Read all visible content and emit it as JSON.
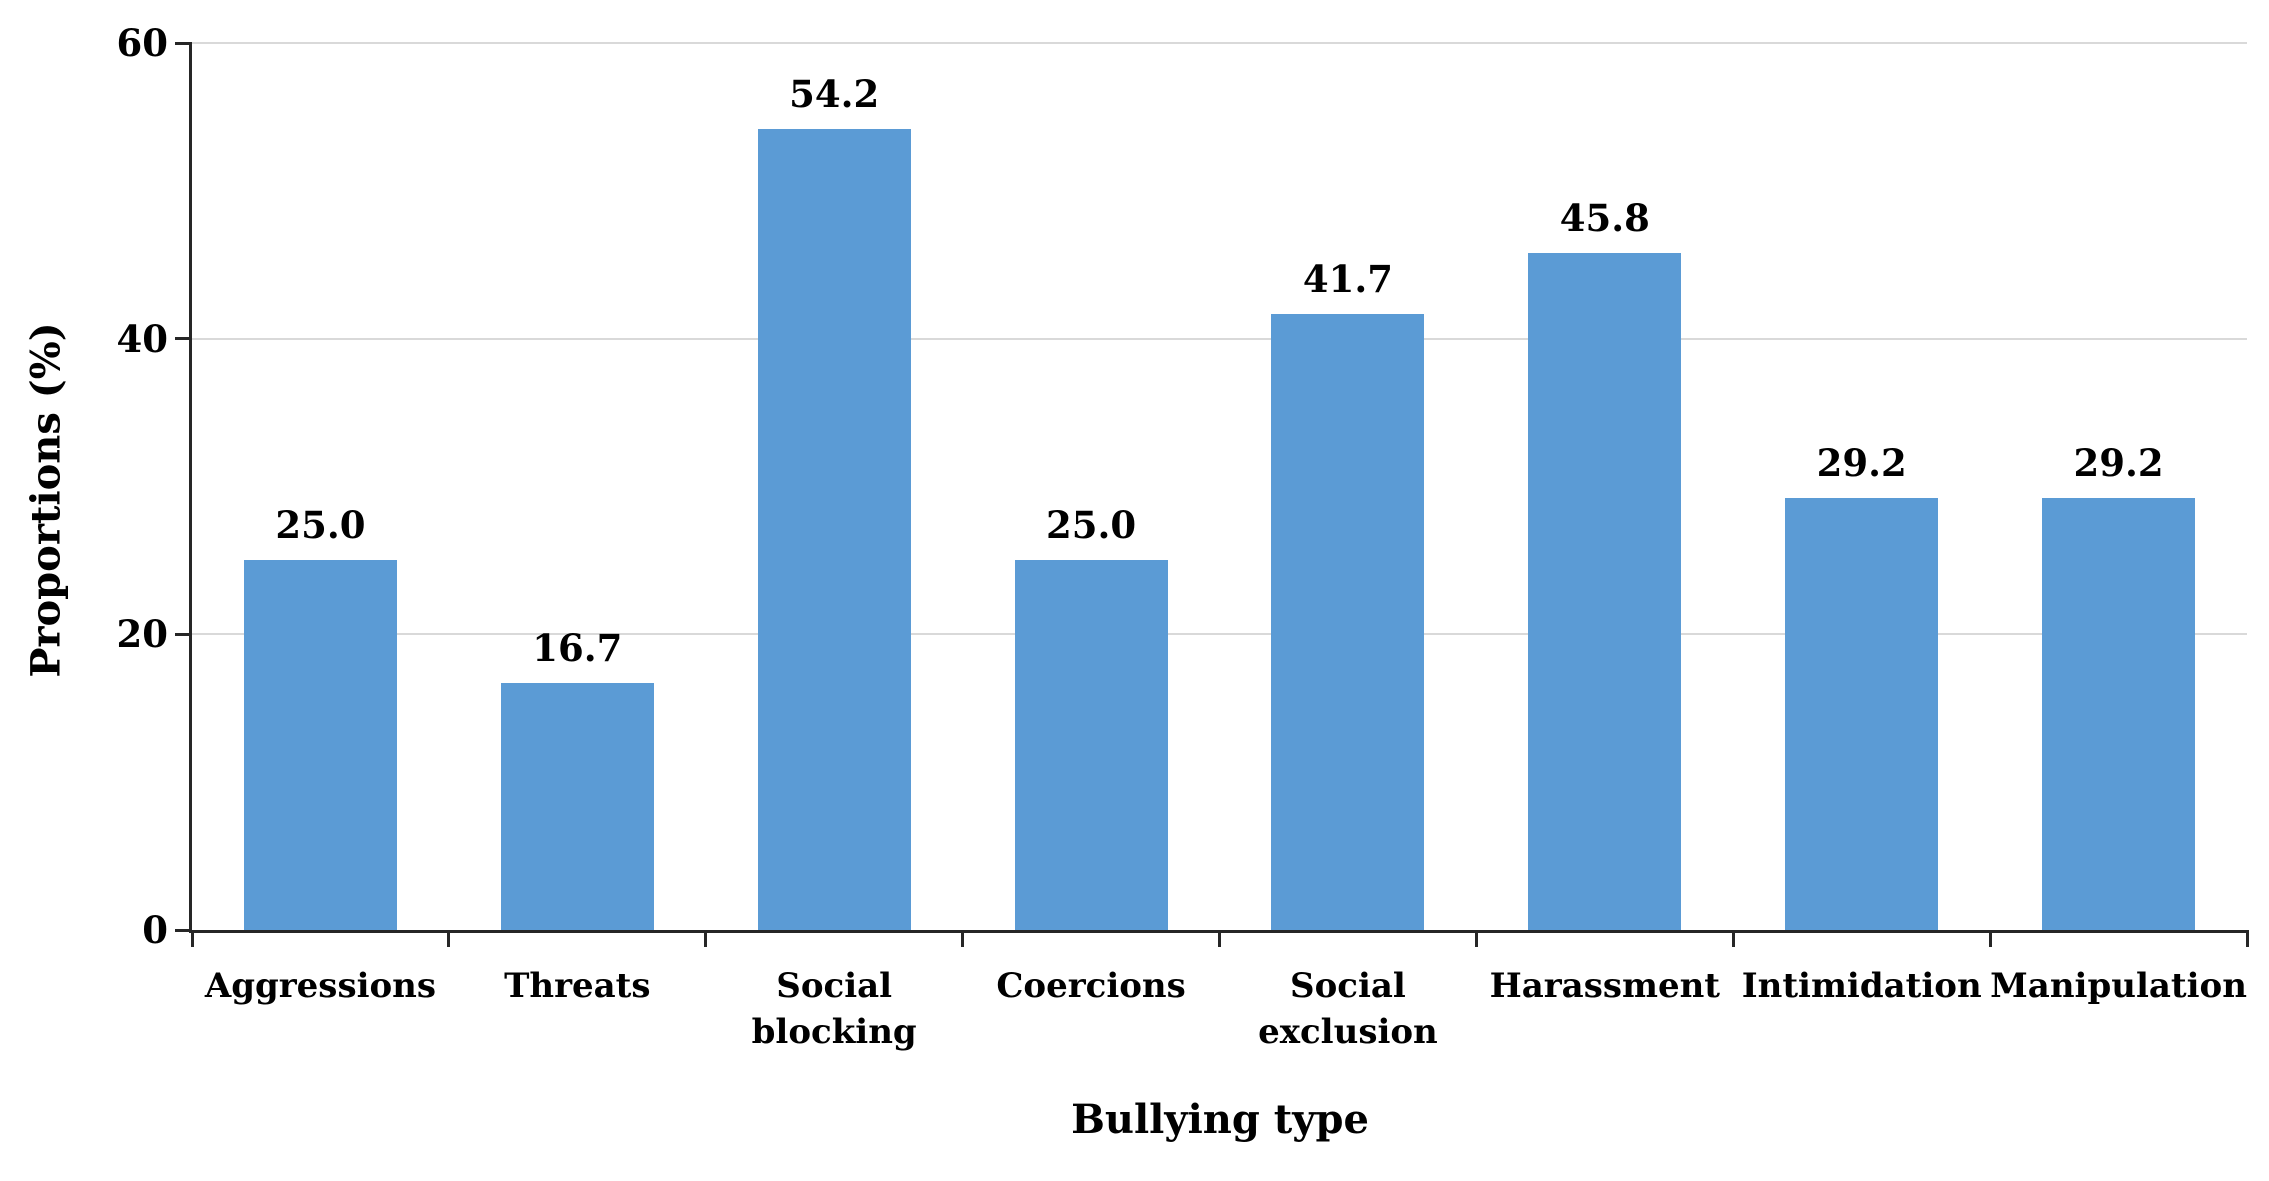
{
  "chart_data": {
    "type": "bar",
    "title": "",
    "xlabel": "Bullying type",
    "ylabel": "Proportions (%)",
    "categories": [
      "Aggressions",
      "Threats",
      "Social blocking",
      "Coercions",
      "Social exclusion",
      "Harassment",
      "Intimidation",
      "Manipulation"
    ],
    "category_display": [
      "Aggressions",
      "Threats",
      "Social\nblocking",
      "Coercions",
      "Social\nexclusion",
      "Harassment",
      "Intimidation",
      "Manipulation"
    ],
    "values": [
      25.0,
      16.7,
      54.2,
      25.0,
      41.7,
      45.8,
      29.2,
      29.2
    ],
    "value_labels": [
      "25.0",
      "16.7",
      "54.2",
      "25.0",
      "41.7",
      "45.8",
      "29.2",
      "29.2"
    ],
    "ylim": [
      0,
      60
    ],
    "yticks": [
      0,
      20,
      40,
      60
    ],
    "ytick_labels": [
      "0",
      "20",
      "40",
      "60"
    ],
    "gridlines_at": [
      20,
      40,
      60
    ],
    "grid": "horizontal",
    "legend_position": "none",
    "bar_color": "#5B9BD5"
  },
  "colors": {
    "bar": "#5B9BD5",
    "grid": "#D9D9D9",
    "axis": "#262626",
    "text": "#000000",
    "background": "#FFFFFF"
  }
}
